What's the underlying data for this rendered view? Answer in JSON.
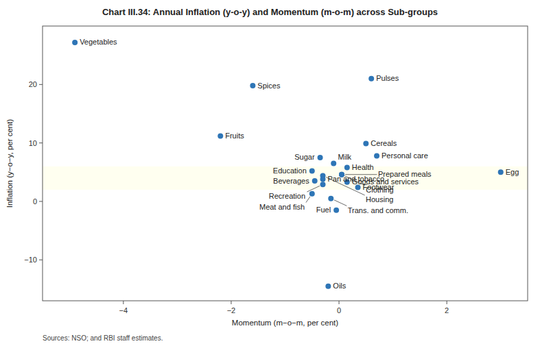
{
  "chart_data": {
    "type": "scatter",
    "title": "Chart III.34: Annual Inflation (y-o-y) and Momentum (m-o-m) across Sub-groups",
    "x_label": "Momentum (m−o−m, per cent)",
    "y_label": "Inflation (y−o−y, per cent)",
    "source": "Sources: NSO; and RBI staff estimates.",
    "color": "#2e75b6",
    "grid": false,
    "xlim": [
      -5.5,
      3.5
    ],
    "ylim": [
      -17,
      30
    ],
    "xticks": [
      {
        "value": -4,
        "label": "−4"
      },
      {
        "value": -2,
        "label": "−2"
      },
      0,
      2
    ],
    "yticks": [
      {
        "value": -10,
        "label": "−10"
      },
      0,
      10,
      20
    ],
    "shaded_band": {
      "y": [
        2.0,
        6.0
      ],
      "color": "#fffff0"
    },
    "labels": [
      "Vegetables",
      "Pulses",
      "Spices",
      "Fruits",
      "Cereals",
      "Personal care",
      "Sugar",
      "Milk",
      "Health",
      "Education",
      "Clothing",
      "Prepared meals",
      "Housing",
      "Pan and tobacco",
      "Beverages",
      "Recreation",
      "Goods and services",
      "Footwear",
      "Meat and fish",
      "Trans. and comm.",
      "Fuel",
      "Oils",
      "Egg"
    ],
    "x": [
      -4.9,
      0.6,
      -1.6,
      -2.2,
      0.5,
      0.7,
      -0.35,
      -0.1,
      0.15,
      -0.5,
      0.05,
      0.05,
      -0.3,
      -0.3,
      -0.45,
      -0.3,
      0.15,
      0.35,
      -0.5,
      -0.15,
      -0.05,
      -0.2,
      3.0
    ],
    "values": [
      27.2,
      21.0,
      19.8,
      11.2,
      9.9,
      7.8,
      7.5,
      6.5,
      5.8,
      5.2,
      4.6,
      4.6,
      4.4,
      3.8,
      3.5,
      2.9,
      3.3,
      2.4,
      1.3,
      0.5,
      -1.5,
      -14.5,
      5.0
    ]
  }
}
